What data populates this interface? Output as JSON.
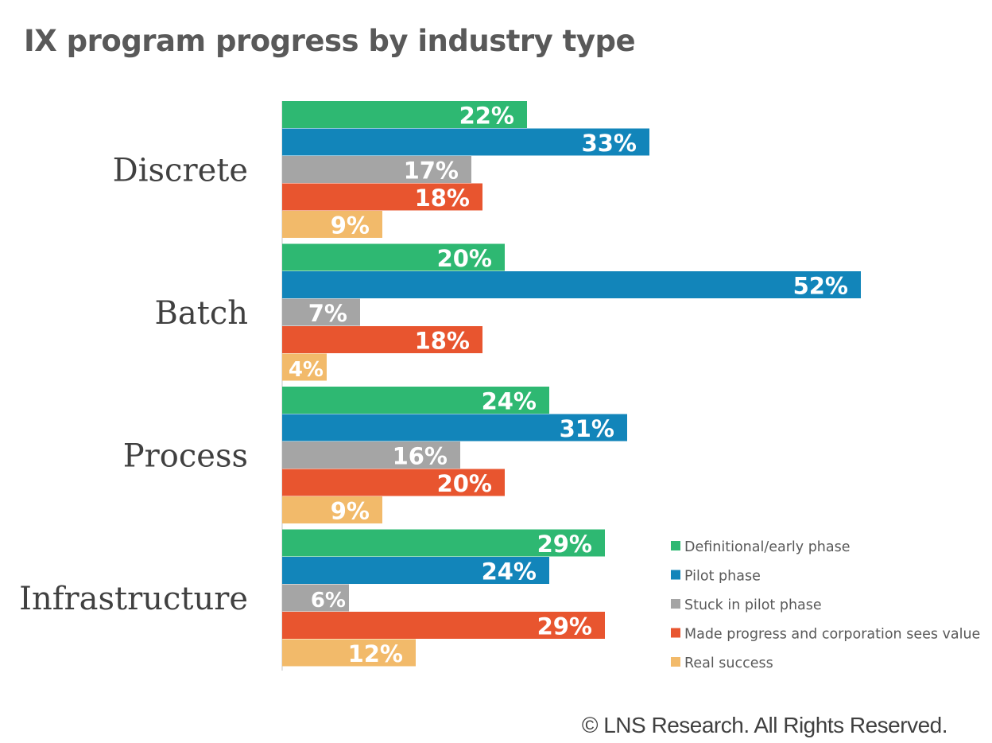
{
  "title": "IX program progress by industry type",
  "copyright": "© LNS Research. All Rights Reserved.",
  "chart_data": {
    "type": "bar",
    "orientation": "horizontal",
    "title": "IX program progress by industry type",
    "xlabel": "",
    "ylabel": "",
    "xlim": [
      0,
      55
    ],
    "grid": false,
    "legend_position": "bottom-right",
    "unit": "%",
    "categories": [
      "Discrete",
      "Batch",
      "Process",
      "Infrastructure"
    ],
    "series": [
      {
        "name": "Definitional/early phase",
        "color": "#2EB872",
        "values": [
          22,
          20,
          24,
          29
        ]
      },
      {
        "name": "Pilot phase",
        "color": "#1285BA",
        "values": [
          33,
          52,
          31,
          24
        ]
      },
      {
        "name": "Stuck in pilot phase",
        "color": "#A5A5A5",
        "values": [
          17,
          7,
          16,
          6
        ]
      },
      {
        "name": "Made progress and corporation sees value",
        "color": "#E8552F",
        "values": [
          18,
          18,
          20,
          29
        ]
      },
      {
        "name": "Real success",
        "color": "#F2BA6A",
        "values": [
          9,
          4,
          9,
          12
        ]
      }
    ]
  }
}
